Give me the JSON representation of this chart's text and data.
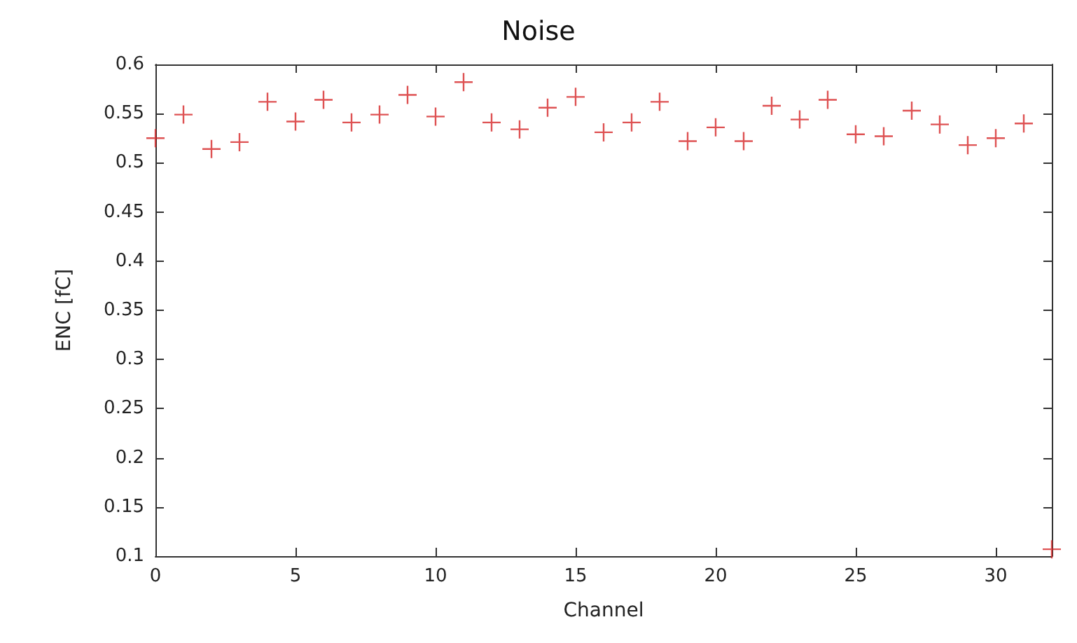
{
  "chart_data": {
    "type": "scatter",
    "title": "Noise",
    "xlabel": "Channel",
    "ylabel": "ENC [fC]",
    "x": [
      0,
      1,
      2,
      3,
      4,
      5,
      6,
      7,
      8,
      9,
      10,
      11,
      12,
      13,
      14,
      15,
      16,
      17,
      18,
      19,
      20,
      21,
      22,
      23,
      24,
      25,
      26,
      27,
      28,
      29,
      30,
      31,
      32
    ],
    "series": [
      {
        "color": "#d62728",
        "values": [
          0.525,
          0.549,
          0.514,
          0.521,
          0.562,
          0.542,
          0.564,
          0.541,
          0.549,
          0.569,
          0.547,
          0.582,
          0.541,
          0.534,
          0.556,
          0.567,
          0.531,
          0.541,
          0.562,
          0.522,
          0.536,
          0.522,
          0.558,
          0.544,
          0.564,
          0.529,
          0.527,
          0.553,
          0.539,
          0.518,
          0.525,
          0.54,
          0.107
        ]
      }
    ],
    "xlim": [
      0,
      32
    ],
    "xticks": [
      0,
      5,
      10,
      15,
      20,
      25,
      30
    ],
    "ylim": [
      0.1,
      0.6
    ],
    "yticks": [
      0.1,
      0.15,
      0.2,
      0.25,
      0.3,
      0.35,
      0.4,
      0.45,
      0.5,
      0.55,
      0.6
    ],
    "grid": false,
    "marker": "cross"
  }
}
